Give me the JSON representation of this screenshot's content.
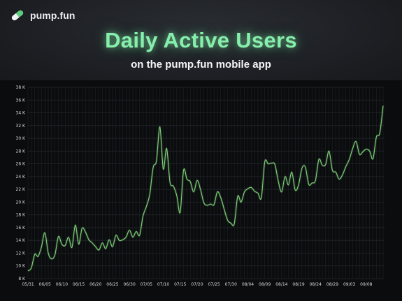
{
  "brand": {
    "name": "pump.fun",
    "logo_icon": "pill-icon",
    "logo_colors": {
      "green": "#5fcb80",
      "white": "#f1f3f4"
    }
  },
  "headline": {
    "title": "Daily Active Users",
    "subtitle": "on the pump.fun mobile app"
  },
  "colors": {
    "title_green": "#86efac",
    "line": "#7fd17a",
    "grid": "#23272b",
    "background": "#0b0c0e"
  },
  "chart_data": {
    "type": "line",
    "title": "Daily Active Users",
    "subtitle": "on the pump.fun mobile app",
    "xlabel": "",
    "ylabel": "",
    "grid": true,
    "legend": "none",
    "ylim": [
      8000,
      38000
    ],
    "yticks": [
      8000,
      10000,
      12000,
      14000,
      16000,
      18000,
      20000,
      22000,
      24000,
      26000,
      28000,
      30000,
      32000,
      34000,
      36000,
      38000
    ],
    "ytick_labels": [
      "8 K",
      "10 K",
      "12 K",
      "14 K",
      "16 K",
      "18 K",
      "20 K",
      "22 K",
      "24 K",
      "26 K",
      "28 K",
      "30 K",
      "32 K",
      "34 K",
      "36 K",
      "38 K"
    ],
    "xtick_labels": [
      "05/31",
      "06/05",
      "06/10",
      "06/15",
      "06/20",
      "06/25",
      "06/30",
      "07/05",
      "07/10",
      "07/15",
      "07/20",
      "07/25",
      "07/30",
      "08/04",
      "08/09",
      "08/14",
      "08/19",
      "08/24",
      "08/29",
      "09/03",
      "09/08"
    ],
    "series": [
      {
        "x": [
          "05/31",
          "06/01",
          "06/02",
          "06/03",
          "06/04",
          "06/05",
          "06/06",
          "06/07",
          "06/08",
          "06/09",
          "06/10",
          "06/11",
          "06/12",
          "06/13",
          "06/14",
          "06/15",
          "06/16",
          "06/17",
          "06/18",
          "06/19",
          "06/20",
          "06/21",
          "06/22",
          "06/23",
          "06/24",
          "06/25",
          "06/26",
          "06/27",
          "06/28",
          "06/29",
          "06/30",
          "07/01",
          "07/02",
          "07/03",
          "07/04",
          "07/05",
          "07/06",
          "07/07",
          "07/08",
          "07/09",
          "07/10",
          "07/11",
          "07/12",
          "07/13",
          "07/14",
          "07/15",
          "07/16",
          "07/17",
          "07/18",
          "07/19",
          "07/20",
          "07/21",
          "07/22",
          "07/23",
          "07/24",
          "07/25",
          "07/26",
          "07/27",
          "07/28",
          "07/29",
          "07/30",
          "07/31",
          "08/01",
          "08/02",
          "08/03",
          "08/04",
          "08/05",
          "08/06",
          "08/07",
          "08/08",
          "08/09",
          "08/10",
          "08/11",
          "08/12",
          "08/13",
          "08/14",
          "08/15",
          "08/16",
          "08/17",
          "08/18",
          "08/19",
          "08/20",
          "08/21",
          "08/22",
          "08/23",
          "08/24",
          "08/25",
          "08/26",
          "08/27",
          "08/28",
          "08/29",
          "08/30",
          "08/31",
          "09/01",
          "09/02",
          "09/03",
          "09/04",
          "09/05",
          "09/06",
          "09/07",
          "09/08",
          "09/09",
          "09/10"
        ],
        "y": [
          9200,
          9700,
          11800,
          11500,
          13000,
          15200,
          12000,
          11100,
          11800,
          14600,
          13400,
          13200,
          14500,
          12900,
          16400,
          13400,
          15900,
          15300,
          14100,
          13600,
          13000,
          12500,
          13600,
          12700,
          14100,
          13000,
          14800,
          14000,
          14100,
          14500,
          15600,
          14500,
          15400,
          14800,
          17800,
          19300,
          21200,
          25400,
          26500,
          31800,
          25200,
          28400,
          23100,
          22500,
          21000,
          18400,
          25000,
          23600,
          23200,
          21600,
          23400,
          22000,
          19900,
          19500,
          19700,
          19600,
          21600,
          20700,
          18900,
          17200,
          16700,
          16600,
          20900,
          20000,
          21600,
          22100,
          22300,
          21700,
          21400,
          20700,
          26300,
          26000,
          26100,
          25900,
          23300,
          21600,
          24000,
          22700,
          24700,
          21900,
          22700,
          25300,
          25500,
          22800,
          23000,
          23400,
          26700,
          25800,
          25900,
          28000,
          25000,
          24700,
          23600,
          24300,
          25600,
          26700,
          28400,
          29500,
          27500,
          27900,
          28300,
          28000,
          26800
        ],
        "tail": [
          30200,
          30800,
          35100
        ]
      }
    ]
  }
}
